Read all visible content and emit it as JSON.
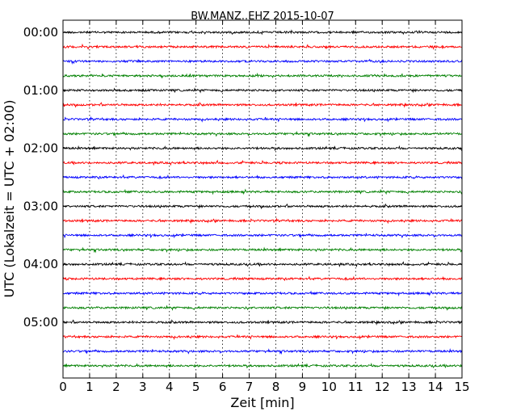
{
  "chart_data": {
    "type": "line",
    "title": "BW.MANZ..EHZ 2015-10-07",
    "xlabel": "Zeit  [min]",
    "ylabel": "UTC (Lokalzeit = UTC + 02:00)",
    "xlim": [
      0,
      15
    ],
    "x_ticks": [
      "0",
      "1",
      "2",
      "3",
      "4",
      "5",
      "6",
      "7",
      "8",
      "9",
      "10",
      "11",
      "12",
      "13",
      "14",
      "15"
    ],
    "y_ticks": [
      "00:00",
      "01:00",
      "02:00",
      "03:00",
      "04:00",
      "05:00"
    ],
    "grid": "vertical dotted lines at each minute",
    "trace_colors": [
      "#000000",
      "#ff0000",
      "#0000ff",
      "#008000"
    ],
    "traces": [
      {
        "start": "00:00"
      },
      {
        "start": "00:15"
      },
      {
        "start": "00:30"
      },
      {
        "start": "00:45"
      },
      {
        "start": "01:00"
      },
      {
        "start": "01:15"
      },
      {
        "start": "01:30"
      },
      {
        "start": "01:45"
      },
      {
        "start": "02:00"
      },
      {
        "start": "02:15"
      },
      {
        "start": "02:30"
      },
      {
        "start": "02:45"
      },
      {
        "start": "03:00"
      },
      {
        "start": "03:15"
      },
      {
        "start": "03:30"
      },
      {
        "start": "03:45"
      },
      {
        "start": "04:00"
      },
      {
        "start": "04:15"
      },
      {
        "start": "04:30"
      },
      {
        "start": "04:45"
      },
      {
        "start": "05:00"
      },
      {
        "start": "05:15"
      },
      {
        "start": "05:30"
      },
      {
        "start": "05:45"
      }
    ]
  }
}
